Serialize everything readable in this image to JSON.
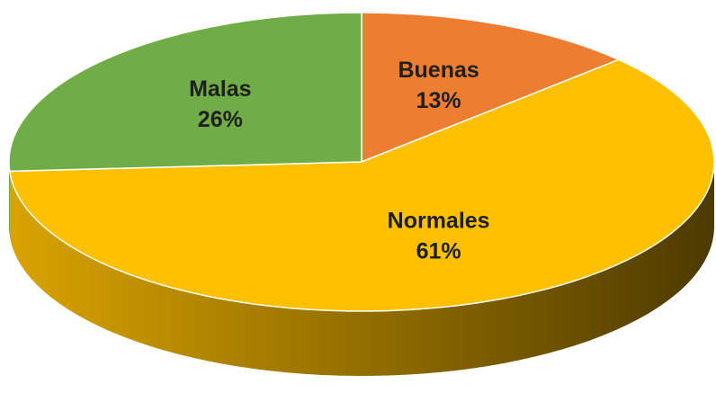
{
  "chart_data": {
    "type": "pie",
    "categories": [
      "Buenas",
      "Normales",
      "Malas"
    ],
    "values": [
      13,
      61,
      26
    ],
    "value_labels": [
      "13%",
      "61%",
      "26%"
    ],
    "colors": [
      "#ED7D31",
      "#FFC000",
      "#70AD47"
    ]
  }
}
